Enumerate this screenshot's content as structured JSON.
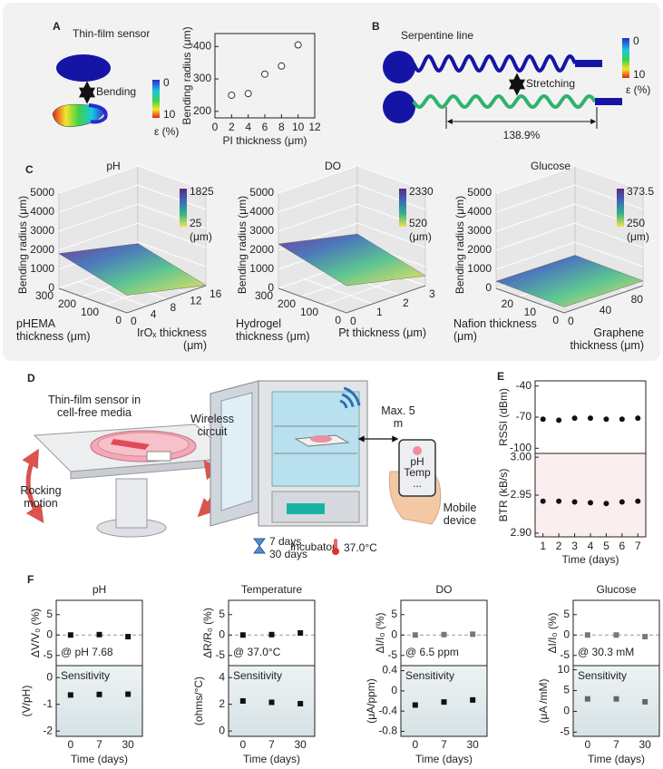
{
  "figure": {
    "A": {
      "label": "A",
      "title": "Thin-film sensor",
      "action": "Bending",
      "colorbar": {
        "ticks": [
          0,
          10
        ],
        "label": "ε (%)"
      }
    },
    "B": {
      "label": "B",
      "title": "Serpentine line",
      "action": "Stretching",
      "strain": "138.9%",
      "colorbar": {
        "ticks": [
          0,
          10
        ],
        "label": "ε (%)"
      }
    },
    "C": {
      "label": "C"
    },
    "D": {
      "label": "D",
      "sensor": "Thin-film sensor in cell-free media",
      "circuit": "Wireless circuit",
      "motion": "Rocking motion",
      "range": "Max. 5 m",
      "phone": [
        "pH",
        "Temp",
        "..."
      ],
      "incubator": "Incubator",
      "device": "Mobile device",
      "durations": [
        "7 days",
        "30 days"
      ],
      "temperature": "37.0°C"
    },
    "E": {
      "label": "E"
    },
    "F": {
      "label": "F"
    }
  },
  "chart_data": [
    {
      "type": "scatter",
      "xlabel": "PI thickness (μm)",
      "ylabel": "Bending radius (μm)",
      "x": [
        2,
        4,
        6,
        8,
        10
      ],
      "values": [
        250,
        255,
        315,
        340,
        405
      ],
      "xlim": [
        0,
        12
      ],
      "xticks": [
        0,
        2,
        4,
        6,
        8,
        10,
        12
      ],
      "ylim": [
        180,
        440
      ],
      "yticks": [
        200,
        300,
        400
      ],
      "marker": "open-circle",
      "color": "#333333"
    },
    {
      "type": "surface",
      "title": "pH",
      "zlabel": "Bending radius (μm)",
      "xlabel": "pHEMA thickness (μm)",
      "ylabel": "IrOₓ thickness (μm)",
      "xlim": [
        0,
        300
      ],
      "xticks": [
        0,
        100,
        200,
        300
      ],
      "ylim": [
        0,
        16
      ],
      "yticks": [
        0,
        4,
        8,
        12,
        16
      ],
      "zlim": [
        0,
        5000
      ],
      "zticks": [
        0,
        1000,
        2000,
        3000,
        4000,
        5000
      ],
      "colorbar": {
        "range": [
          25,
          1825
        ],
        "label": "(μm)"
      }
    },
    {
      "type": "surface",
      "title": "DO",
      "zlabel": "Bending radius (μm)",
      "xlabel": "Hydrogel thickness (μm)",
      "ylabel": "Pt thickness (μm)",
      "xlim": [
        0,
        300
      ],
      "xticks": [
        0,
        100,
        200,
        300
      ],
      "ylim": [
        0,
        3
      ],
      "yticks": [
        0,
        1,
        2,
        3
      ],
      "zlim": [
        0,
        5000
      ],
      "zticks": [
        0,
        1000,
        2000,
        3000,
        4000,
        5000
      ],
      "colorbar": {
        "range": [
          520,
          2330
        ],
        "label": "(μm)"
      }
    },
    {
      "type": "surface",
      "title": "Glucose",
      "zlabel": "Bending radius (μm)",
      "xlabel": "Nafion thickness (μm)",
      "ylabel": "Graphene thickness (μm)",
      "xlim": [
        0,
        30
      ],
      "xticks": [
        0,
        10,
        20
      ],
      "ylim": [
        0,
        100
      ],
      "yticks": [
        0,
        40,
        80
      ],
      "zlim": [
        0,
        5000
      ],
      "zticks": [
        0,
        1000,
        2000,
        3000,
        4000,
        5000
      ],
      "colorbar": {
        "range": [
          250,
          373.5
        ],
        "label": "(μm)"
      }
    },
    {
      "type": "scatter",
      "ylabel": "RSSI (dBm)",
      "x": [
        1,
        2,
        3,
        4,
        5,
        6,
        7
      ],
      "values": [
        -72,
        -73,
        -71,
        -71,
        -72,
        -72,
        -71
      ],
      "xlim": [
        0.5,
        7.5
      ],
      "ylim": [
        -105,
        -35
      ],
      "yticks": [
        -100,
        -70,
        -40
      ],
      "marker": "circle",
      "color": "#111111"
    },
    {
      "type": "scatter",
      "ylabel": "BTR (kB/s)",
      "xlabel": "Time (days)",
      "x": [
        1,
        2,
        3,
        4,
        5,
        6,
        7
      ],
      "values": [
        2.942,
        2.942,
        2.941,
        2.94,
        2.939,
        2.941,
        2.942
      ],
      "xlim": [
        0.5,
        7.5
      ],
      "xticks": [
        1,
        2,
        3,
        4,
        5,
        6,
        7
      ],
      "ylim": [
        2.895,
        3.005
      ],
      "yticks": [
        {
          "value": 2.9,
          "label": "2.90"
        },
        2.95,
        {
          "value": 3,
          "label": "3.00"
        }
      ],
      "marker": "circle",
      "color": "#111111"
    },
    {
      "type": "scatter",
      "title": "pH",
      "ylabel": "ΔV/V₀ (%)",
      "annotation": "@ pH 7.68",
      "values": [
        0,
        0.1,
        -0.4
      ],
      "reference": 0,
      "ylim": [
        -7.5,
        8.5
      ],
      "yticks": [
        -5,
        0,
        5
      ],
      "marker": "square",
      "color": "#111111"
    },
    {
      "type": "scatter",
      "annotation": "Sensitivity",
      "ylabel": "(V/pH)",
      "xlabel": "Time (days)",
      "categories": [
        "0",
        "7",
        "30"
      ],
      "values": [
        -0.65,
        -0.63,
        -0.62
      ],
      "ylim": [
        -2.2,
        0.45
      ],
      "yticks": [
        -2,
        -1,
        0
      ],
      "marker": "square",
      "color": "#111111"
    },
    {
      "type": "scatter",
      "title": "Temperature",
      "ylabel": "ΔR/R₀ (%)",
      "annotation": "@ 37.0°C",
      "values": [
        0,
        0.1,
        0.5
      ],
      "reference": 0,
      "ylim": [
        -7.5,
        8.5
      ],
      "yticks": [
        -5,
        0,
        5
      ],
      "marker": "square",
      "color": "#111111"
    },
    {
      "type": "scatter",
      "annotation": "Sensitivity",
      "ylabel": "(ohms/°C)",
      "xlabel": "Time (days)",
      "categories": [
        "0",
        "7",
        "30"
      ],
      "values": [
        2.25,
        2.15,
        2.05
      ],
      "ylim": [
        -0.4,
        4.9
      ],
      "yticks": [
        0,
        2,
        4
      ],
      "marker": "square",
      "color": "#111111"
    },
    {
      "type": "scatter",
      "title": "DO",
      "ylabel": "ΔI/I₀ (%)",
      "annotation": "@ 6.5 ppm",
      "values": [
        0,
        0.1,
        0.2
      ],
      "reference": 0,
      "ylim": [
        -7.5,
        8.5
      ],
      "yticks": [
        -5,
        0,
        5
      ],
      "marker": "square",
      "color": "#777777"
    },
    {
      "type": "scatter",
      "annotation": "Sensitivity",
      "ylabel": "(μA/ppm)",
      "xlabel": "Time (days)",
      "categories": [
        "0",
        "7",
        "30"
      ],
      "values": [
        -0.28,
        -0.22,
        -0.18
      ],
      "ylim": [
        -0.9,
        0.5
      ],
      "yticks": [
        -0.8,
        -0.4,
        0,
        0.4
      ],
      "marker": "square",
      "color": "#111111"
    },
    {
      "type": "scatter",
      "title": "Glucose",
      "ylabel": "ΔI/I₀ (%)",
      "annotation": "@ 30.3 mM",
      "values": [
        0,
        0,
        -0.4
      ],
      "reference": 0,
      "ylim": [
        -7.5,
        8.5
      ],
      "yticks": [
        -5,
        0,
        5
      ],
      "marker": "square",
      "color": "#777777"
    },
    {
      "type": "scatter",
      "annotation": "Sensitivity",
      "ylabel": "(μA /mM)",
      "xlabel": "Time (days)",
      "categories": [
        "0",
        "7",
        "30"
      ],
      "values": [
        3,
        3,
        2.3
      ],
      "ylim": [
        -6,
        11
      ],
      "yticks": [
        -5,
        0,
        5,
        10
      ],
      "marker": "square",
      "color": "#666666"
    }
  ]
}
